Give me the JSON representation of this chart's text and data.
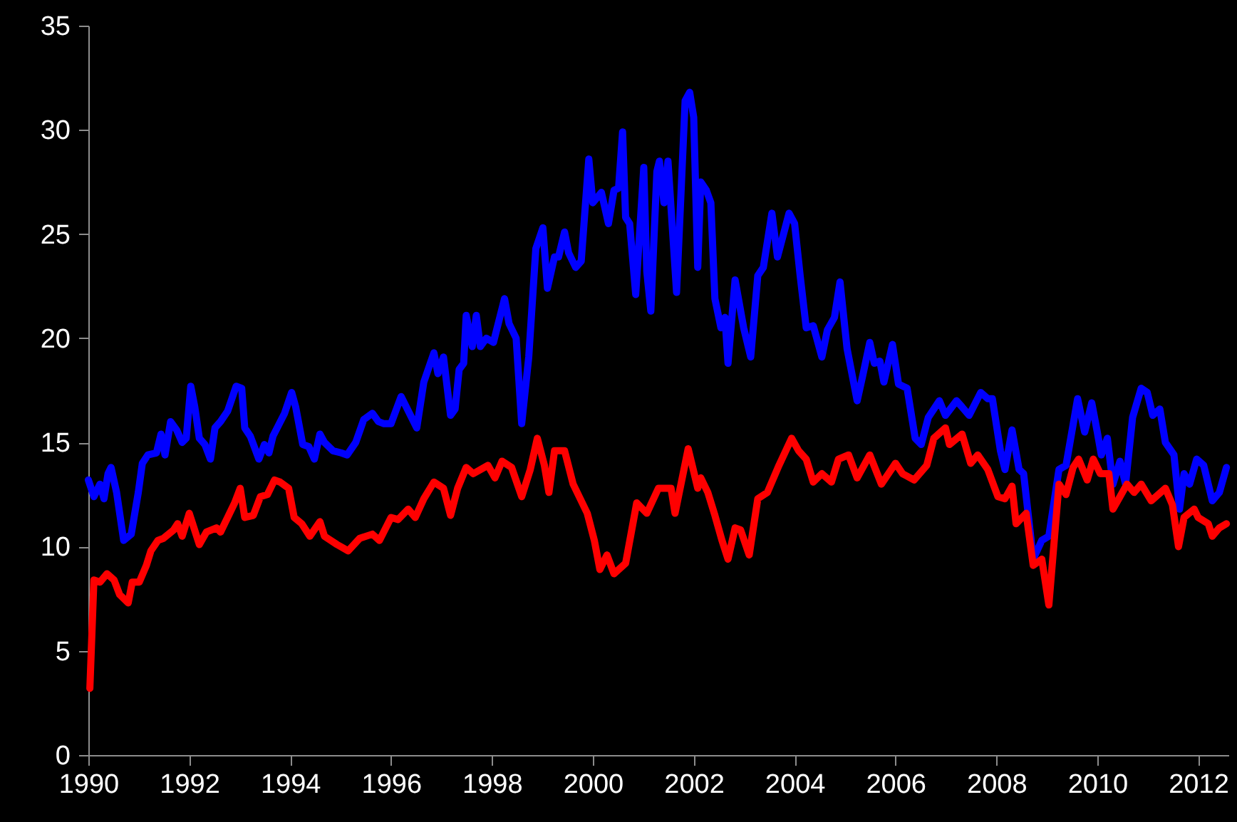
{
  "chart_data": {
    "type": "line",
    "xlim": [
      1990,
      2012.6
    ],
    "xticks": [
      1990,
      1992,
      1994,
      1996,
      1998,
      2000,
      2002,
      2004,
      2006,
      2008,
      2010,
      2012
    ],
    "ylim": [
      0,
      35
    ],
    "yticks": [
      0,
      5,
      10,
      15,
      20,
      25,
      30,
      35
    ],
    "grid": false,
    "series": [
      {
        "color": "#0000ff",
        "x": [
          1990.0,
          1990.11,
          1990.23,
          1990.31,
          1990.39,
          1990.45,
          1990.56,
          1990.7,
          1990.85,
          1990.99,
          1991.07,
          1991.18,
          1991.35,
          1991.44,
          1991.52,
          1991.63,
          1991.75,
          1991.86,
          1991.94,
          1992.03,
          1992.11,
          1992.2,
          1992.31,
          1992.42,
          1992.51,
          1992.62,
          1992.76,
          1992.93,
          1993.04,
          1993.1,
          1993.21,
          1993.38,
          1993.49,
          1993.58,
          1993.66,
          1993.89,
          1994.03,
          1994.11,
          1994.25,
          1994.37,
          1994.48,
          1994.59,
          1994.68,
          1994.85,
          1995.01,
          1995.13,
          1995.3,
          1995.46,
          1995.63,
          1995.75,
          1995.86,
          1996.0,
          1996.2,
          1996.51,
          1996.65,
          1996.85,
          1996.93,
          1997.04,
          1997.18,
          1997.27,
          1997.35,
          1997.44,
          1997.49,
          1997.61,
          1997.69,
          1997.77,
          1997.89,
          1998.03,
          1998.25,
          1998.34,
          1998.48,
          1998.59,
          1998.73,
          1998.87,
          1999.01,
          1999.1,
          1999.24,
          1999.32,
          1999.44,
          1999.52,
          1999.66,
          1999.77,
          1999.92,
          2000.0,
          2000.17,
          2000.31,
          2000.42,
          2000.51,
          2000.59,
          2000.65,
          2000.73,
          2000.85,
          2001.01,
          2001.07,
          2001.15,
          2001.27,
          2001.32,
          2001.41,
          2001.49,
          2001.66,
          2001.83,
          2001.92,
          2002.0,
          2002.08,
          2002.14,
          2002.25,
          2002.34,
          2002.42,
          2002.54,
          2002.62,
          2002.68,
          2002.82,
          2002.99,
          2003.13,
          2003.27,
          2003.38,
          2003.55,
          2003.66,
          2003.89,
          2004.0,
          2004.11,
          2004.23,
          2004.37,
          2004.54,
          2004.65,
          2004.79,
          2004.9,
          2005.04,
          2005.24,
          2005.35,
          2005.49,
          2005.58,
          2005.69,
          2005.77,
          2005.94,
          2006.06,
          2006.23,
          2006.39,
          2006.51,
          2006.65,
          2006.87,
          2006.99,
          2007.21,
          2007.32,
          2007.46,
          2007.69,
          2007.83,
          2007.92,
          2008.08,
          2008.17,
          2008.31,
          2008.45,
          2008.54,
          2008.73,
          2008.9,
          2009.04,
          2009.24,
          2009.38,
          2009.61,
          2009.75,
          2009.89,
          2010.0,
          2010.08,
          2010.2,
          2010.31,
          2010.45,
          2010.56,
          2010.7,
          2010.87,
          2010.99,
          2011.1,
          2011.24,
          2011.35,
          2011.52,
          2011.63,
          2011.72,
          2011.83,
          2011.97,
          2012.11,
          2012.28,
          2012.42,
          2012.56
        ],
        "values": [
          13.2,
          12.4,
          13.0,
          12.3,
          13.5,
          13.8,
          12.6,
          10.3,
          10.6,
          12.6,
          14.0,
          14.4,
          14.5,
          15.4,
          14.4,
          16.0,
          15.6,
          15.0,
          15.2,
          17.7,
          16.7,
          15.2,
          14.9,
          14.2,
          15.7,
          16.0,
          16.5,
          17.7,
          17.6,
          15.7,
          15.3,
          14.2,
          14.9,
          14.5,
          15.3,
          16.4,
          17.4,
          16.7,
          14.9,
          14.8,
          14.2,
          15.4,
          15.0,
          14.6,
          14.5,
          14.4,
          15.0,
          16.1,
          16.4,
          16.0,
          15.9,
          15.9,
          17.2,
          15.7,
          17.9,
          19.3,
          18.3,
          19.1,
          16.3,
          16.6,
          18.5,
          18.8,
          21.1,
          19.6,
          21.1,
          19.6,
          20.0,
          19.8,
          21.9,
          20.7,
          20.0,
          15.9,
          19.1,
          24.3,
          25.3,
          22.4,
          23.9,
          23.9,
          25.1,
          24.1,
          23.4,
          23.7,
          28.6,
          26.5,
          27.0,
          25.5,
          27.1,
          27.2,
          29.9,
          25.8,
          25.5,
          22.1,
          28.2,
          23.2,
          21.3,
          28.0,
          28.5,
          26.5,
          28.5,
          22.2,
          31.4,
          31.8,
          30.6,
          23.4,
          27.5,
          27.1,
          26.5,
          21.9,
          20.5,
          21.0,
          18.8,
          22.8,
          20.5,
          19.1,
          23.0,
          23.4,
          26.0,
          23.9,
          26.0,
          25.5,
          23.0,
          20.5,
          20.6,
          19.1,
          20.4,
          21.0,
          22.7,
          19.5,
          17.0,
          18.2,
          19.8,
          18.8,
          18.9,
          17.9,
          19.7,
          17.8,
          17.6,
          15.2,
          14.9,
          16.2,
          17.0,
          16.3,
          17.0,
          16.7,
          16.3,
          17.4,
          17.1,
          17.1,
          14.6,
          13.7,
          15.6,
          13.7,
          13.5,
          9.4,
          10.3,
          10.5,
          13.7,
          13.9,
          17.1,
          15.5,
          16.9,
          15.5,
          14.4,
          15.2,
          13.0,
          14.1,
          13.0,
          16.2,
          17.6,
          17.4,
          16.3,
          16.6,
          15.0,
          14.4,
          11.8,
          13.5,
          13.0,
          14.2,
          13.9,
          12.2,
          12.6,
          13.8
        ]
      },
      {
        "color": "#ff0000",
        "x": [
          1990.03,
          1990.11,
          1990.23,
          1990.37,
          1990.51,
          1990.62,
          1990.79,
          1990.87,
          1991.01,
          1991.15,
          1991.24,
          1991.38,
          1991.49,
          1991.69,
          1991.77,
          1991.86,
          1992.0,
          1992.2,
          1992.34,
          1992.54,
          1992.62,
          1992.9,
          1993.01,
          1993.1,
          1993.27,
          1993.41,
          1993.55,
          1993.69,
          1993.8,
          1993.97,
          1994.08,
          1994.23,
          1994.39,
          1994.59,
          1994.68,
          1994.93,
          1995.15,
          1995.38,
          1995.63,
          1995.77,
          1996.0,
          1996.14,
          1996.34,
          1996.48,
          1996.65,
          1996.85,
          1997.04,
          1997.18,
          1997.32,
          1997.49,
          1997.63,
          1997.92,
          1998.06,
          1998.2,
          1998.39,
          1998.59,
          1998.76,
          1998.9,
          1999.04,
          1999.13,
          1999.24,
          1999.44,
          1999.61,
          1999.89,
          2000.03,
          2000.14,
          2000.28,
          2000.42,
          2000.65,
          2000.87,
          2001.07,
          2001.3,
          2001.55,
          2001.63,
          2001.89,
          2002.08,
          2002.14,
          2002.28,
          2002.42,
          2002.56,
          2002.68,
          2002.82,
          2002.93,
          2003.1,
          2003.27,
          2003.46,
          2003.69,
          2003.94,
          2004.08,
          2004.23,
          2004.37,
          2004.54,
          2004.73,
          2004.87,
          2005.07,
          2005.24,
          2005.49,
          2005.72,
          2005.86,
          2006.0,
          2006.14,
          2006.37,
          2006.62,
          2006.76,
          2006.99,
          2007.07,
          2007.32,
          2007.49,
          2007.63,
          2007.83,
          2008.03,
          2008.17,
          2008.31,
          2008.39,
          2008.59,
          2008.73,
          2008.9,
          2009.04,
          2009.24,
          2009.38,
          2009.52,
          2009.63,
          2009.8,
          2009.92,
          2010.06,
          2010.23,
          2010.31,
          2010.45,
          2010.59,
          2010.73,
          2010.87,
          2011.07,
          2011.35,
          2011.49,
          2011.61,
          2011.72,
          2011.92,
          2012.0,
          2012.2,
          2012.28,
          2012.42,
          2012.56
        ],
        "values": [
          3.2,
          8.4,
          8.3,
          8.7,
          8.4,
          7.7,
          7.3,
          8.3,
          8.3,
          9.1,
          9.8,
          10.3,
          10.4,
          10.8,
          11.1,
          10.5,
          11.6,
          10.1,
          10.7,
          10.9,
          10.7,
          12.1,
          12.8,
          11.4,
          11.5,
          12.4,
          12.5,
          13.2,
          13.1,
          12.8,
          11.4,
          11.1,
          10.5,
          11.2,
          10.5,
          10.1,
          9.8,
          10.4,
          10.6,
          10.3,
          11.4,
          11.3,
          11.8,
          11.4,
          12.3,
          13.1,
          12.8,
          11.5,
          12.8,
          13.8,
          13.5,
          13.9,
          13.3,
          14.1,
          13.8,
          12.4,
          13.7,
          15.2,
          13.9,
          12.6,
          14.6,
          14.6,
          13.0,
          11.6,
          10.3,
          8.9,
          9.6,
          8.7,
          9.2,
          12.1,
          11.6,
          12.8,
          12.8,
          11.6,
          14.7,
          12.8,
          13.3,
          12.6,
          11.5,
          10.3,
          9.4,
          10.9,
          10.8,
          9.6,
          12.3,
          12.6,
          13.9,
          15.2,
          14.6,
          14.2,
          13.1,
          13.5,
          13.1,
          14.2,
          14.4,
          13.3,
          14.4,
          13.0,
          13.5,
          14.0,
          13.5,
          13.2,
          13.9,
          15.2,
          15.7,
          14.9,
          15.4,
          14.0,
          14.4,
          13.7,
          12.4,
          12.3,
          12.9,
          11.1,
          11.6,
          9.1,
          9.4,
          7.2,
          13.0,
          12.5,
          13.8,
          14.2,
          13.2,
          14.2,
          13.5,
          13.5,
          11.8,
          12.4,
          13.0,
          12.6,
          13.0,
          12.2,
          12.8,
          12.0,
          10.0,
          11.4,
          11.8,
          11.4,
          11.1,
          10.5,
          10.9,
          11.1
        ]
      }
    ]
  }
}
